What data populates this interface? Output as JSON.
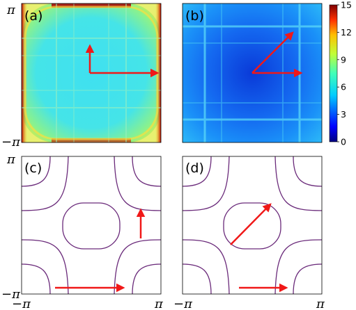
{
  "panels": [
    {
      "label": "(a)"
    },
    {
      "label": "(b)"
    },
    {
      "label": "(c)"
    },
    {
      "label": "(d)"
    }
  ],
  "axes": {
    "pi": "π",
    "neg_pi": "−π"
  },
  "colorbar": {
    "ticks": [
      "15",
      "12",
      "9",
      "6",
      "3",
      "0"
    ],
    "tick_values": [
      15,
      12,
      9,
      6,
      3,
      0
    ],
    "range": [
      0,
      15
    ],
    "colormap": "jet"
  },
  "colors": {
    "arrow": "#f01818",
    "contour": "#6a2a7a"
  }
}
